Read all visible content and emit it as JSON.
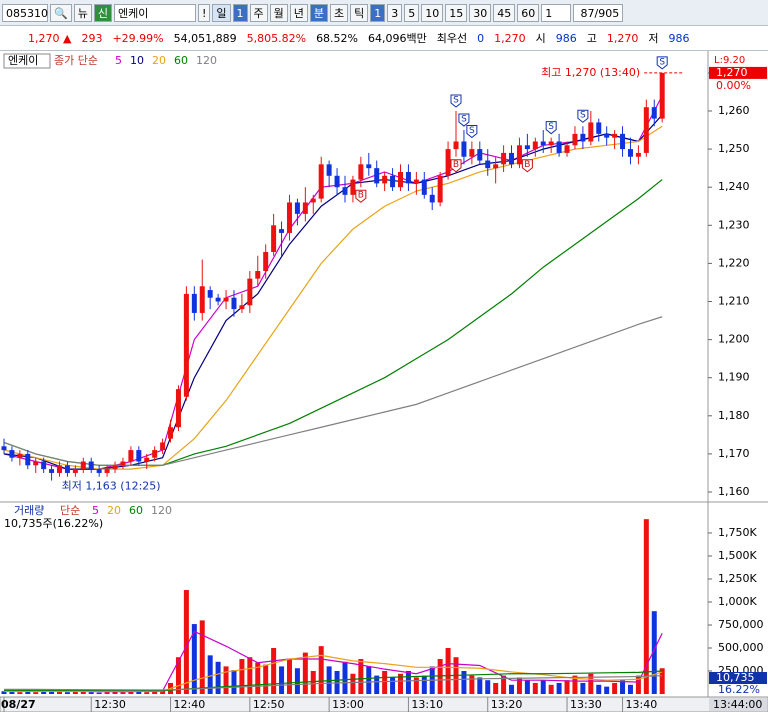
{
  "toolbar": {
    "code": "085310",
    "news": "뉴",
    "credit": "신",
    "name": "엔케이",
    "alert": "!",
    "period": "일",
    "period_num": "1",
    "periods": [
      "주",
      "월",
      "년",
      "분",
      "초",
      "틱"
    ],
    "intervals": [
      "1",
      "3",
      "5",
      "10",
      "15",
      "30",
      "45",
      "60"
    ],
    "count": "1",
    "range": "87/905"
  },
  "info_bar": {
    "price": "1,270",
    "change": "293",
    "change_pct": "+29.99%",
    "volume": "54,051,889",
    "volume_ratio": "5,805.82%",
    "turnover": "68.52%",
    "amount": "64,096백만",
    "best_label": "최우선",
    "best_value": "0",
    "best_price": "1,270",
    "open_label": "시",
    "open": "986",
    "high_label": "고",
    "high": "1,270",
    "low_label": "저",
    "low": "986"
  },
  "cursor_time": "13:44:00",
  "chart_data": [
    {
      "type": "candlestick",
      "legend_title": "엔케이",
      "legend_label": "종가 단순",
      "categories": [
        "08/27",
        null,
        null,
        null,
        null,
        null,
        null,
        null,
        null,
        null,
        null,
        "12:30",
        null,
        null,
        null,
        null,
        null,
        null,
        null,
        null,
        null,
        "12:40",
        null,
        null,
        null,
        null,
        null,
        null,
        null,
        null,
        null,
        "12:50",
        null,
        null,
        null,
        null,
        null,
        null,
        null,
        null,
        null,
        "13:00",
        null,
        null,
        null,
        null,
        null,
        null,
        null,
        null,
        null,
        "13:10",
        null,
        null,
        null,
        null,
        null,
        null,
        null,
        null,
        null,
        "13:20",
        null,
        null,
        null,
        null,
        null,
        null,
        null,
        null,
        null,
        "13:30",
        null,
        null,
        null,
        null,
        null,
        null,
        "13:40",
        null,
        null,
        null,
        null,
        null
      ],
      "open": [
        1172,
        1171,
        1169,
        1170,
        1167,
        1168,
        1166,
        1165,
        1167,
        1165,
        1166,
        1168,
        1166,
        1165,
        1166,
        1167,
        1168,
        1171,
        1168,
        1169,
        1171,
        1174,
        1177,
        1185,
        1212,
        1207,
        1213,
        1211,
        1210,
        1211,
        1208,
        1209,
        1216,
        1218,
        1223,
        1229,
        1228,
        1236,
        1233,
        1236,
        1237,
        1246,
        1243,
        1240,
        1238,
        1242,
        1246,
        1245,
        1241,
        1243,
        1240,
        1244,
        1241,
        1242,
        1238,
        1236,
        1243,
        1250,
        1252,
        1248,
        1250,
        1247,
        1245,
        1246,
        1249,
        1246,
        1251,
        1250,
        1252,
        1251,
        1252,
        1249,
        1251,
        1254,
        1252,
        1257,
        1254,
        1253,
        1254,
        1250,
        1248,
        1249,
        1261,
        1258
      ],
      "high": [
        1174,
        1172,
        1171,
        1171,
        1169,
        1169,
        1167,
        1168,
        1168,
        1167,
        1169,
        1169,
        1167,
        1167,
        1168,
        1169,
        1172,
        1172,
        1170,
        1172,
        1174,
        1179,
        1188,
        1214,
        1214,
        1221,
        1214,
        1212,
        1213,
        1213,
        1212,
        1218,
        1222,
        1225,
        1233,
        1231,
        1238,
        1237,
        1240,
        1238,
        1248,
        1247,
        1245,
        1243,
        1243,
        1248,
        1249,
        1247,
        1244,
        1245,
        1246,
        1246,
        1244,
        1244,
        1240,
        1244,
        1252,
        1260,
        1255,
        1252,
        1252,
        1250,
        1248,
        1251,
        1251,
        1253,
        1254,
        1253,
        1255,
        1253,
        1254,
        1252,
        1256,
        1256,
        1260,
        1258,
        1256,
        1255,
        1256,
        1253,
        1251,
        1263,
        1263,
        1270
      ],
      "low": [
        1170,
        1168,
        1167,
        1166,
        1165,
        1165,
        1163,
        1164,
        1164,
        1164,
        1165,
        1165,
        1164,
        1164,
        1165,
        1166,
        1167,
        1167,
        1166,
        1168,
        1170,
        1173,
        1176,
        1184,
        1205,
        1205,
        1208,
        1209,
        1208,
        1206,
        1207,
        1207,
        1214,
        1216,
        1222,
        1222,
        1226,
        1230,
        1231,
        1233,
        1236,
        1240,
        1238,
        1236,
        1236,
        1240,
        1243,
        1240,
        1239,
        1239,
        1239,
        1239,
        1238,
        1237,
        1234,
        1235,
        1242,
        1248,
        1246,
        1246,
        1246,
        1243,
        1241,
        1244,
        1245,
        1245,
        1248,
        1248,
        1249,
        1249,
        1248,
        1248,
        1250,
        1250,
        1251,
        1252,
        1251,
        1250,
        1248,
        1246,
        1246,
        1248,
        1256,
        1257
      ],
      "close": [
        1171,
        1169,
        1170,
        1167,
        1168,
        1166,
        1165,
        1167,
        1165,
        1166,
        1168,
        1166,
        1165,
        1166,
        1167,
        1168,
        1171,
        1168,
        1169,
        1171,
        1173,
        1177,
        1187,
        1212,
        1207,
        1214,
        1211,
        1210,
        1211,
        1208,
        1209,
        1216,
        1218,
        1223,
        1230,
        1228,
        1236,
        1233,
        1236,
        1237,
        1246,
        1243,
        1240,
        1238,
        1242,
        1246,
        1245,
        1241,
        1243,
        1240,
        1244,
        1241,
        1242,
        1238,
        1236,
        1243,
        1250,
        1252,
        1248,
        1250,
        1247,
        1245,
        1246,
        1249,
        1246,
        1251,
        1250,
        1252,
        1251,
        1252,
        1249,
        1251,
        1254,
        1252,
        1257,
        1254,
        1253,
        1254,
        1250,
        1248,
        1249,
        1261,
        1258,
        1270
      ],
      "up_color": "#ee1111",
      "down_color": "#1133dd",
      "series": [
        {
          "name": "5",
          "color": "#cc00cc",
          "x": [
            0,
            4,
            8,
            12,
            16,
            20,
            24,
            28,
            32,
            36,
            40,
            44,
            48,
            52,
            56,
            60,
            64,
            68,
            72,
            76,
            80,
            83
          ],
          "values": [
            1170,
            1168,
            1166,
            1166,
            1168,
            1171,
            1200,
            1211,
            1214,
            1229,
            1240,
            1241,
            1244,
            1241,
            1244,
            1249,
            1247,
            1251,
            1252,
            1254,
            1252,
            1264
          ]
        },
        {
          "name": "10",
          "color": "#000080",
          "x": [
            0,
            4,
            8,
            12,
            16,
            20,
            24,
            28,
            32,
            36,
            40,
            44,
            48,
            52,
            56,
            60,
            64,
            68,
            72,
            76,
            80,
            83
          ],
          "values": [
            1170,
            1169,
            1166,
            1166,
            1167,
            1169,
            1190,
            1205,
            1212,
            1225,
            1235,
            1241,
            1242,
            1241,
            1243,
            1246,
            1247,
            1250,
            1252,
            1254,
            1252,
            1259
          ]
        },
        {
          "name": "20",
          "color": "#e8a317",
          "x": [
            0,
            4,
            8,
            12,
            16,
            20,
            24,
            28,
            32,
            36,
            40,
            44,
            48,
            52,
            56,
            60,
            64,
            68,
            72,
            76,
            80,
            83
          ],
          "values": [
            1171,
            1169,
            1167,
            1166,
            1166,
            1167,
            1174,
            1184,
            1196,
            1208,
            1220,
            1229,
            1235,
            1239,
            1241,
            1244,
            1246,
            1248,
            1250,
            1251,
            1252,
            1256
          ]
        },
        {
          "name": "60",
          "color": "#008000",
          "x": [
            0,
            4,
            8,
            12,
            16,
            20,
            24,
            28,
            32,
            36,
            40,
            44,
            48,
            52,
            56,
            60,
            64,
            68,
            72,
            76,
            80,
            83
          ],
          "values": [
            1173,
            1170,
            1168,
            1167,
            1167,
            1167,
            1170,
            1172,
            1175,
            1178,
            1182,
            1186,
            1190,
            1195,
            1200,
            1206,
            1212,
            1219,
            1225,
            1231,
            1237,
            1242
          ]
        },
        {
          "name": "120",
          "color": "#808080",
          "x": [
            0,
            4,
            8,
            12,
            16,
            20,
            24,
            28,
            32,
            36,
            40,
            44,
            48,
            52,
            56,
            60,
            64,
            68,
            72,
            76,
            80,
            83
          ],
          "values": [
            1173,
            1170,
            1168,
            1167,
            1167,
            1167,
            1169,
            1171,
            1173,
            1175,
            1177,
            1179,
            1181,
            1183,
            1186,
            1189,
            1192,
            1195,
            1198,
            1201,
            1204,
            1206
          ]
        }
      ],
      "ylim": [
        1157.9,
        1274.7
      ],
      "yticks": [
        {
          "value": 1160,
          "label": "1,160"
        },
        {
          "value": 1170,
          "label": "1,170"
        },
        {
          "value": 1180,
          "label": "1,180"
        },
        {
          "value": 1190,
          "label": "1,190"
        },
        {
          "value": 1200,
          "label": "1,200"
        },
        {
          "value": 1210,
          "label": "1,210"
        },
        {
          "value": 1220,
          "label": "1,220"
        },
        {
          "value": 1230,
          "label": "1,230"
        },
        {
          "value": 1240,
          "label": "1,240"
        },
        {
          "value": 1250,
          "label": "1,250"
        },
        {
          "value": 1260,
          "label": "1,260"
        },
        {
          "value": 1270,
          "label": "1,270"
        }
      ],
      "annotations": [
        {
          "text": "최고 1,270 (13:40)",
          "x": 83,
          "y": 1270
        },
        {
          "text": "최저 1,163 (12:25)",
          "x": 6,
          "y": 1163
        }
      ],
      "signals": [
        {
          "x": 57,
          "label": "S"
        },
        {
          "x": 58,
          "label": "S"
        },
        {
          "x": 59,
          "label": "S"
        },
        {
          "x": 69,
          "label": "S"
        },
        {
          "x": 73,
          "label": "S"
        },
        {
          "x": 83,
          "label": "S"
        },
        {
          "x": 45,
          "label": "B"
        },
        {
          "x": 57,
          "label": "B"
        },
        {
          "x": 66,
          "label": "B"
        }
      ],
      "axis_labels": {
        "top": "L:9.20",
        "price": "1,270",
        "pct": "0.00%"
      }
    },
    {
      "type": "bar",
      "legend_title": "거래량",
      "legend_label": "단순",
      "info": "10,735주(16.22%)",
      "values": [
        30000,
        25000,
        20000,
        40000,
        20000,
        30000,
        50000,
        30000,
        20000,
        25000,
        30000,
        20000,
        15000,
        20000,
        25000,
        20000,
        40000,
        30000,
        20000,
        35000,
        45000,
        120000,
        400000,
        1130000,
        760000,
        800000,
        420000,
        350000,
        300000,
        260000,
        380000,
        400000,
        340000,
        320000,
        500000,
        300000,
        380000,
        280000,
        450000,
        250000,
        520000,
        300000,
        250000,
        350000,
        220000,
        380000,
        300000,
        200000,
        250000,
        180000,
        220000,
        250000,
        180000,
        200000,
        300000,
        380000,
        500000,
        400000,
        250000,
        200000,
        180000,
        150000,
        120000,
        200000,
        100000,
        180000,
        150000,
        120000,
        150000,
        100000,
        120000,
        150000,
        200000,
        120000,
        220000,
        100000,
        80000,
        120000,
        150000,
        100000,
        200000,
        1900000,
        900000,
        280000
      ],
      "series": [
        {
          "name": "5",
          "color": "#cc00cc",
          "x": [
            0,
            4,
            8,
            12,
            16,
            20,
            24,
            28,
            32,
            36,
            40,
            44,
            48,
            52,
            56,
            60,
            64,
            68,
            72,
            76,
            80,
            83
          ],
          "values": [
            30000,
            28000,
            30000,
            25000,
            25000,
            34000,
            680000,
            520000,
            340000,
            380000,
            380000,
            330000,
            270000,
            220000,
            330000,
            310000,
            150000,
            150000,
            140000,
            140000,
            130000,
            660000
          ]
        },
        {
          "name": "20",
          "color": "#e8a317",
          "x": [
            0,
            4,
            8,
            12,
            16,
            20,
            24,
            28,
            32,
            36,
            40,
            44,
            48,
            52,
            56,
            60,
            64,
            68,
            72,
            76,
            80,
            83
          ],
          "values": [
            30000,
            30000,
            30000,
            29000,
            28000,
            30000,
            150000,
            240000,
            290000,
            380000,
            420000,
            360000,
            330000,
            290000,
            290000,
            280000,
            240000,
            210000,
            170000,
            150000,
            160000,
            240000
          ]
        },
        {
          "name": "60",
          "color": "#008000",
          "x": [
            0,
            4,
            8,
            12,
            16,
            20,
            24,
            28,
            32,
            36,
            40,
            44,
            48,
            52,
            56,
            60,
            64,
            68,
            72,
            76,
            80,
            83
          ],
          "values": [
            40000,
            40000,
            40000,
            38000,
            36000,
            35000,
            60000,
            80000,
            100000,
            120000,
            140000,
            160000,
            180000,
            190000,
            200000,
            210000,
            220000,
            220000,
            225000,
            230000,
            235000,
            250000
          ]
        },
        {
          "name": "120",
          "color": "#808080",
          "x": [
            0,
            4,
            8,
            12,
            16,
            20,
            24,
            28,
            32,
            36,
            40,
            44,
            48,
            52,
            56,
            60,
            64,
            68,
            72,
            76,
            80,
            83
          ],
          "values": [
            50000,
            50000,
            48000,
            46000,
            45000,
            44000,
            55000,
            70000,
            85000,
            100000,
            115000,
            125000,
            135000,
            145000,
            155000,
            165000,
            170000,
            175000,
            180000,
            185000,
            190000,
            200000
          ]
        }
      ],
      "ylim": [
        0,
        2054000
      ],
      "yticks": [
        {
          "value": 250000,
          "label": "250,000"
        },
        {
          "value": 500000,
          "label": "500,000"
        },
        {
          "value": 750000,
          "label": "750,000"
        },
        {
          "value": 1000000,
          "label": "1,000K"
        },
        {
          "value": 1250000,
          "label": "1,250K"
        },
        {
          "value": 1500000,
          "label": "1,500K"
        },
        {
          "value": 1750000,
          "label": "1,750K"
        }
      ],
      "axis_labels": {
        "volume": "10,735",
        "pct": "16.22%"
      }
    }
  ]
}
